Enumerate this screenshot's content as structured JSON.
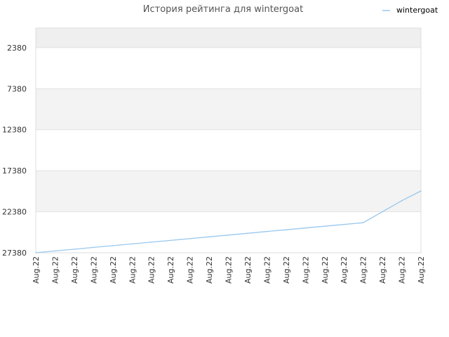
{
  "chart_data": {
    "type": "line",
    "title": "История рейтинга для wintergoat",
    "xlabel": "",
    "ylabel": "",
    "y_inverted": true,
    "ylim": [
      27380,
      0
    ],
    "yticks": [
      2380,
      7380,
      12380,
      17380,
      22380,
      27380
    ],
    "grid": true,
    "legend_position": "top-right",
    "categories": [
      "Aug.22",
      "Aug.22",
      "Aug.22",
      "Aug.22",
      "Aug.22",
      "Aug.22",
      "Aug.22",
      "Aug.22",
      "Aug.22",
      "Aug.22",
      "Aug.22",
      "Aug.22",
      "Aug.22",
      "Aug.22",
      "Aug.22",
      "Aug.22",
      "Aug.22",
      "Aug.22",
      "Aug.22",
      "Aug.22",
      "Aug.22"
    ],
    "series": [
      {
        "name": "wintergoat",
        "color": "#99c8ee",
        "values": [
          27380,
          27160,
          26950,
          26730,
          26520,
          26300,
          26090,
          25870,
          25660,
          25440,
          25220,
          25010,
          24790,
          24580,
          24360,
          24150,
          23930,
          23720,
          22380,
          21040,
          19850
        ]
      }
    ]
  }
}
